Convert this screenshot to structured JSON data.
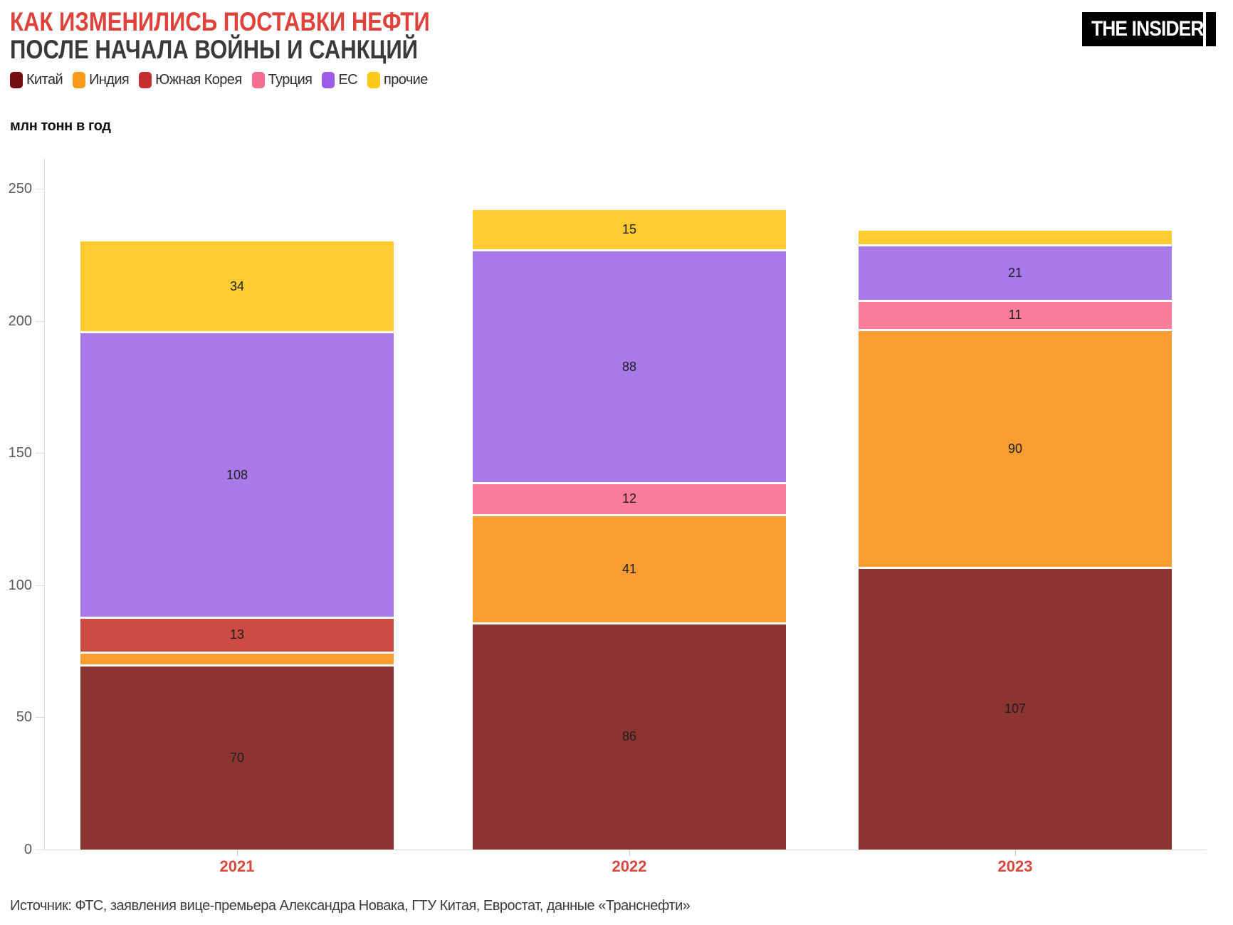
{
  "header": {
    "title_line1": "КАК ИЗМЕНИЛИСЬ ПОСТАВКИ НЕФТИ",
    "title_line2": "ПОСЛЕ НАЧАЛА ВОЙНЫ И САНКЦИЙ",
    "logo_text": "THE INSIDER"
  },
  "chart_data": {
    "type": "bar",
    "stacked": true,
    "categories": [
      "2021",
      "2022",
      "2023"
    ],
    "series": [
      {
        "name": "Китай",
        "legend_color": "#740d13",
        "bar_color": "#8b3431",
        "values": [
          70,
          86,
          107
        ]
      },
      {
        "name": "Индия",
        "legend_color": "#f89b1a",
        "bar_color": "#f99d33",
        "values": [
          5,
          41,
          90
        ]
      },
      {
        "name": "Южная Корея",
        "legend_color": "#c22f2e",
        "bar_color": "#cc4b45",
        "values": [
          13,
          0,
          0
        ]
      },
      {
        "name": "Турция",
        "legend_color": "#f76d92",
        "bar_color": "#fa7d9c",
        "values": [
          0,
          12,
          11
        ]
      },
      {
        "name": "ЕС",
        "legend_color": "#9c5ce9",
        "bar_color": "#a87ae9",
        "values": [
          108,
          88,
          21
        ]
      },
      {
        "name": "прочие",
        "legend_color": "#fec91a",
        "bar_color": "#fdcc33",
        "values": [
          34,
          15,
          5
        ]
      }
    ],
    "totals": [
      230,
      242,
      234
    ],
    "ylabel": "млн тонн в год",
    "yticks": [
      0,
      50,
      100,
      150,
      200,
      250
    ],
    "ylim": [
      0,
      250
    ],
    "grid": false,
    "legend_position": "top-left",
    "value_label_min": 10,
    "accent_color": "#df423b",
    "xtick_color": "#d9473e"
  },
  "footer": {
    "source": "Источник: ФТС, заявления вице-премьера Александра Новака, ГТУ Китая, Евростат, данные «Транснефти»"
  }
}
